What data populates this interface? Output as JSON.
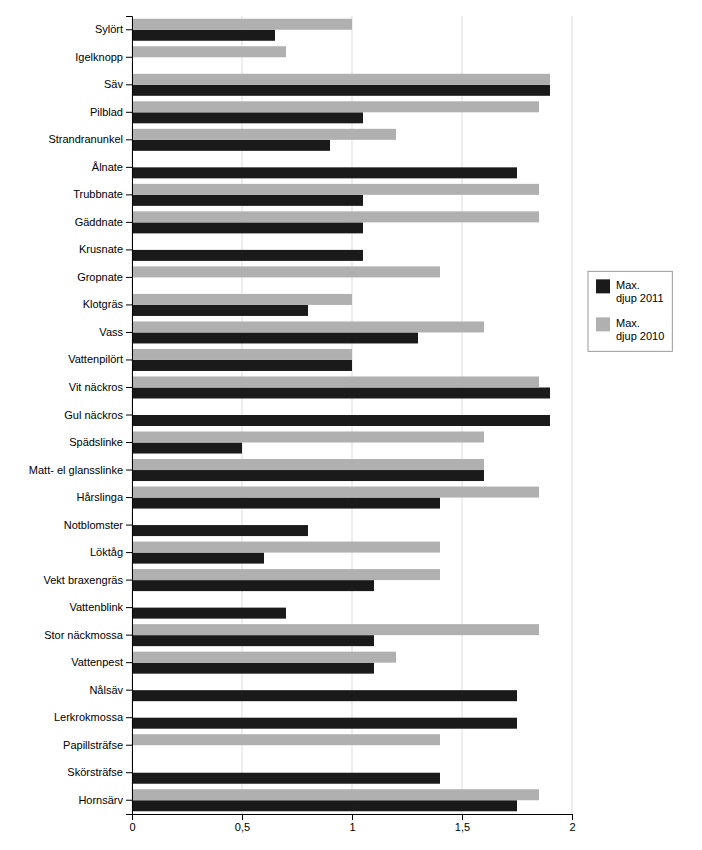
{
  "chart_data": {
    "type": "bar",
    "orientation": "horizontal",
    "categories": [
      "Sylört",
      "Igelknopp",
      "Säv",
      "Pilblad",
      "Strandranunkel",
      "Ålnate",
      "Trubbnate",
      "Gäddnate",
      "Krusnate",
      "Gropnate",
      "Klotgräs",
      "Vass",
      "Vattenpilört",
      "Vit näckros",
      "Gul näckros",
      "Spädslinke",
      "Matt- el glansslinke",
      "Hårslinga",
      "Notblomster",
      "Löktåg",
      "Vekt braxengräs",
      "Vattenblink",
      "Stor näckmossa",
      "Vattenpest",
      "Nålsäv",
      "Lerkrokmossa",
      "Papillsträfse",
      "Skörsträfse",
      "Hornsärv"
    ],
    "series": [
      {
        "name": "Max.\ndjup 2011",
        "color": "#1a1a1a",
        "values": [
          0.65,
          0.0,
          1.9,
          1.05,
          0.9,
          1.75,
          1.05,
          1.05,
          1.05,
          0.0,
          0.8,
          1.3,
          1.0,
          1.9,
          1.9,
          0.5,
          1.6,
          1.4,
          0.8,
          0.6,
          1.1,
          0.7,
          1.1,
          1.1,
          1.75,
          1.75,
          0.0,
          1.4,
          1.75
        ]
      },
      {
        "name": "Max.\ndjup 2010",
        "color": "#b0b0b0",
        "values": [
          1.0,
          0.7,
          1.9,
          1.85,
          1.2,
          0.0,
          1.85,
          1.85,
          0.0,
          1.4,
          1.0,
          1.6,
          1.0,
          1.85,
          0.0,
          1.6,
          1.6,
          1.85,
          0.0,
          1.4,
          1.4,
          0.0,
          1.85,
          1.2,
          0.0,
          0.0,
          1.4,
          0.0,
          1.85
        ]
      }
    ],
    "xlim": [
      0,
      2.0
    ],
    "xticks": [
      0,
      {
        "value": 0.5,
        "label": "0,5"
      },
      1.0,
      {
        "value": 1.5,
        "label": "1,5"
      },
      2.0
    ],
    "grid": true,
    "legend": "right"
  }
}
